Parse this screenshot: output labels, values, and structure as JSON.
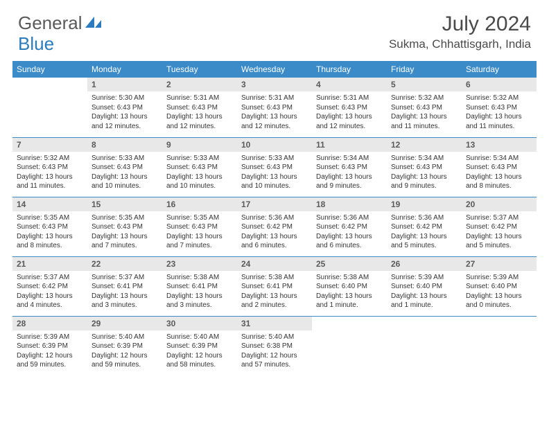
{
  "logo": {
    "word1": "General",
    "word2": "Blue"
  },
  "title": "July 2024",
  "location": "Sukma, Chhattisgarh, India",
  "colors": {
    "headerBlue": "#3b8bc8",
    "daynumGray": "#e8e8e8",
    "textGray": "#4a4a4a",
    "logoBlue": "#2b7bbf"
  },
  "weekdays": [
    "Sunday",
    "Monday",
    "Tuesday",
    "Wednesday",
    "Thursday",
    "Friday",
    "Saturday"
  ],
  "weeks": [
    [
      null,
      {
        "n": "1",
        "rise": "5:30 AM",
        "set": "6:43 PM",
        "day": "13 hours and 12 minutes."
      },
      {
        "n": "2",
        "rise": "5:31 AM",
        "set": "6:43 PM",
        "day": "13 hours and 12 minutes."
      },
      {
        "n": "3",
        "rise": "5:31 AM",
        "set": "6:43 PM",
        "day": "13 hours and 12 minutes."
      },
      {
        "n": "4",
        "rise": "5:31 AM",
        "set": "6:43 PM",
        "day": "13 hours and 12 minutes."
      },
      {
        "n": "5",
        "rise": "5:32 AM",
        "set": "6:43 PM",
        "day": "13 hours and 11 minutes."
      },
      {
        "n": "6",
        "rise": "5:32 AM",
        "set": "6:43 PM",
        "day": "13 hours and 11 minutes."
      }
    ],
    [
      {
        "n": "7",
        "rise": "5:32 AM",
        "set": "6:43 PM",
        "day": "13 hours and 11 minutes."
      },
      {
        "n": "8",
        "rise": "5:33 AM",
        "set": "6:43 PM",
        "day": "13 hours and 10 minutes."
      },
      {
        "n": "9",
        "rise": "5:33 AM",
        "set": "6:43 PM",
        "day": "13 hours and 10 minutes."
      },
      {
        "n": "10",
        "rise": "5:33 AM",
        "set": "6:43 PM",
        "day": "13 hours and 10 minutes."
      },
      {
        "n": "11",
        "rise": "5:34 AM",
        "set": "6:43 PM",
        "day": "13 hours and 9 minutes."
      },
      {
        "n": "12",
        "rise": "5:34 AM",
        "set": "6:43 PM",
        "day": "13 hours and 9 minutes."
      },
      {
        "n": "13",
        "rise": "5:34 AM",
        "set": "6:43 PM",
        "day": "13 hours and 8 minutes."
      }
    ],
    [
      {
        "n": "14",
        "rise": "5:35 AM",
        "set": "6:43 PM",
        "day": "13 hours and 8 minutes."
      },
      {
        "n": "15",
        "rise": "5:35 AM",
        "set": "6:43 PM",
        "day": "13 hours and 7 minutes."
      },
      {
        "n": "16",
        "rise": "5:35 AM",
        "set": "6:43 PM",
        "day": "13 hours and 7 minutes."
      },
      {
        "n": "17",
        "rise": "5:36 AM",
        "set": "6:42 PM",
        "day": "13 hours and 6 minutes."
      },
      {
        "n": "18",
        "rise": "5:36 AM",
        "set": "6:42 PM",
        "day": "13 hours and 6 minutes."
      },
      {
        "n": "19",
        "rise": "5:36 AM",
        "set": "6:42 PM",
        "day": "13 hours and 5 minutes."
      },
      {
        "n": "20",
        "rise": "5:37 AM",
        "set": "6:42 PM",
        "day": "13 hours and 5 minutes."
      }
    ],
    [
      {
        "n": "21",
        "rise": "5:37 AM",
        "set": "6:42 PM",
        "day": "13 hours and 4 minutes."
      },
      {
        "n": "22",
        "rise": "5:37 AM",
        "set": "6:41 PM",
        "day": "13 hours and 3 minutes."
      },
      {
        "n": "23",
        "rise": "5:38 AM",
        "set": "6:41 PM",
        "day": "13 hours and 3 minutes."
      },
      {
        "n": "24",
        "rise": "5:38 AM",
        "set": "6:41 PM",
        "day": "13 hours and 2 minutes."
      },
      {
        "n": "25",
        "rise": "5:38 AM",
        "set": "6:40 PM",
        "day": "13 hours and 1 minute."
      },
      {
        "n": "26",
        "rise": "5:39 AM",
        "set": "6:40 PM",
        "day": "13 hours and 1 minute."
      },
      {
        "n": "27",
        "rise": "5:39 AM",
        "set": "6:40 PM",
        "day": "13 hours and 0 minutes."
      }
    ],
    [
      {
        "n": "28",
        "rise": "5:39 AM",
        "set": "6:39 PM",
        "day": "12 hours and 59 minutes."
      },
      {
        "n": "29",
        "rise": "5:40 AM",
        "set": "6:39 PM",
        "day": "12 hours and 59 minutes."
      },
      {
        "n": "30",
        "rise": "5:40 AM",
        "set": "6:39 PM",
        "day": "12 hours and 58 minutes."
      },
      {
        "n": "31",
        "rise": "5:40 AM",
        "set": "6:38 PM",
        "day": "12 hours and 57 minutes."
      },
      null,
      null,
      null
    ]
  ],
  "labels": {
    "sunrise": "Sunrise:",
    "sunset": "Sunset:",
    "daylight": "Daylight:"
  }
}
